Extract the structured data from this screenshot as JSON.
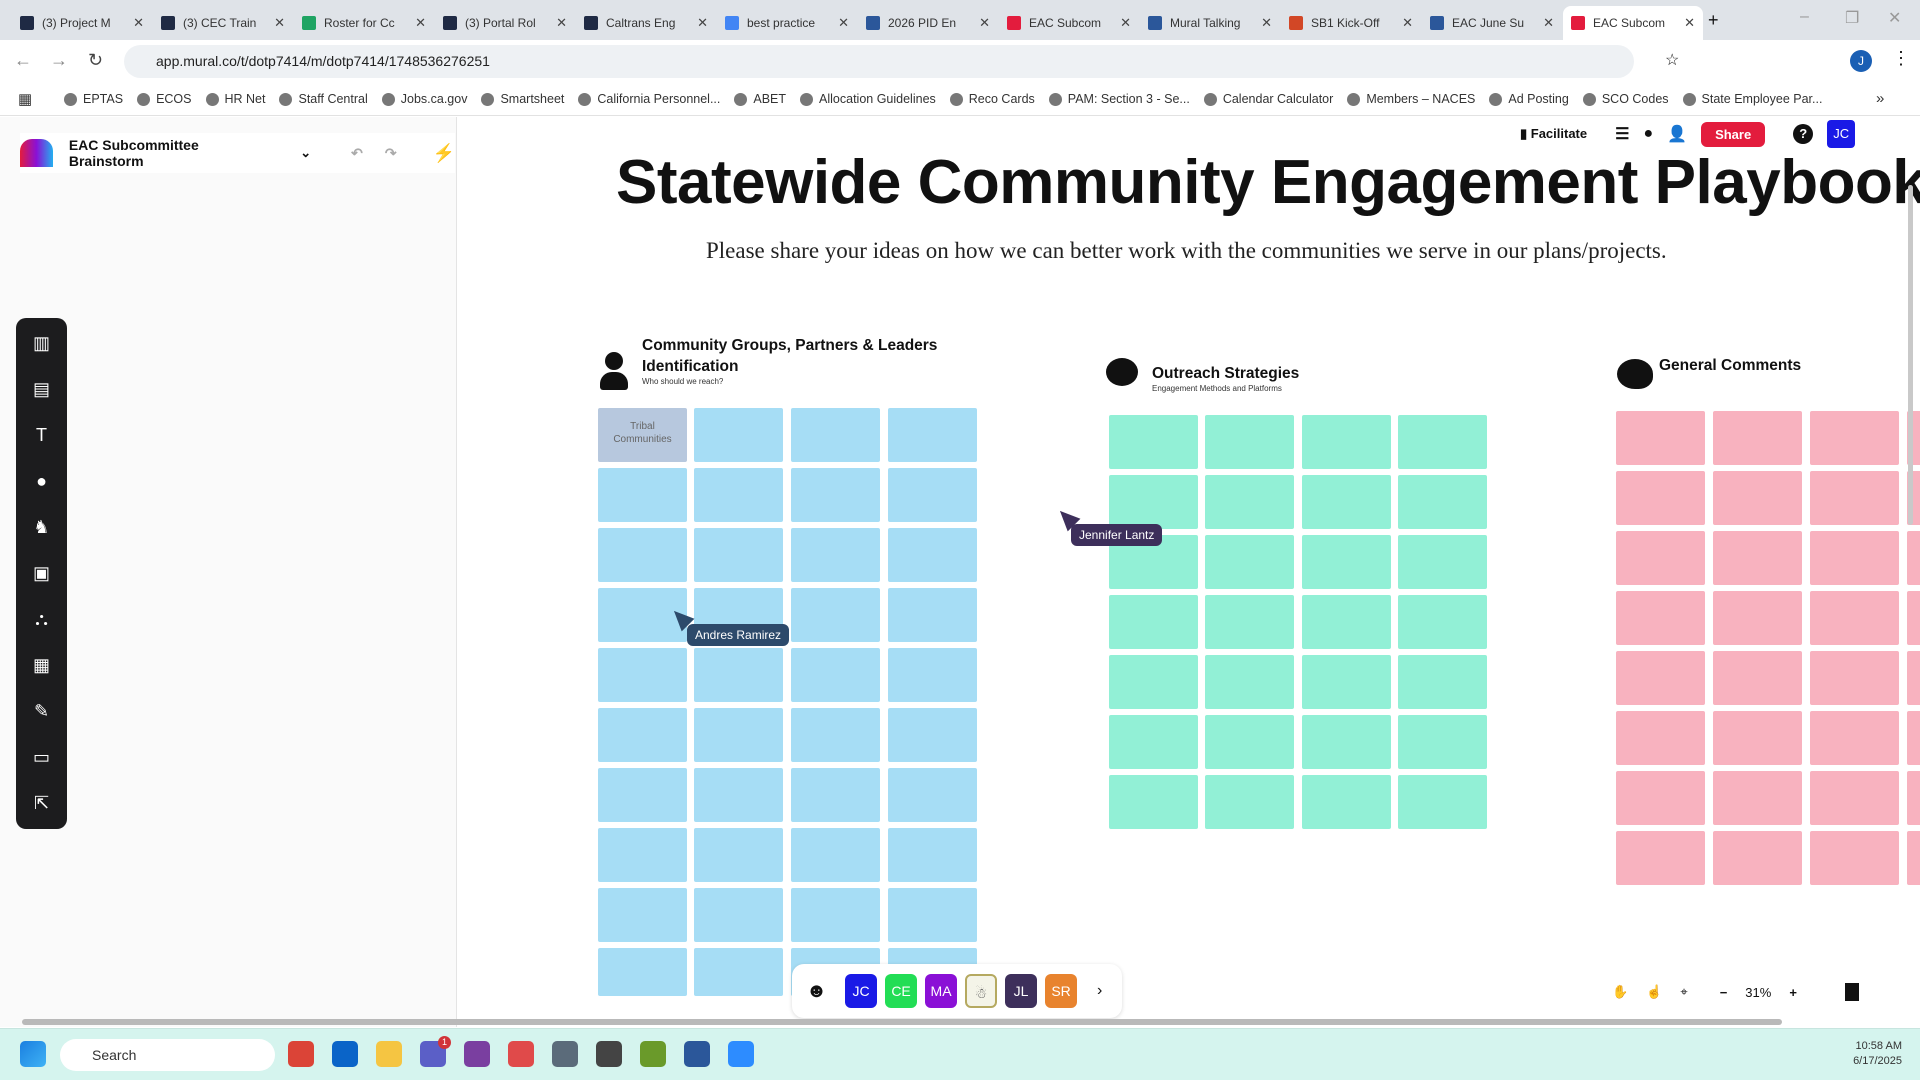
{
  "browser": {
    "tabs": [
      {
        "title": "(3) Project M",
        "icon_color": "#1f2a44"
      },
      {
        "title": "(3) CEC Train",
        "icon_color": "#1f2a44"
      },
      {
        "title": "Roster for Cc",
        "icon_color": "#1fa463"
      },
      {
        "title": "(3) Portal Rol",
        "icon_color": "#1f2a44"
      },
      {
        "title": "Caltrans Eng",
        "icon_color": "#1f2a44"
      },
      {
        "title": "best practice",
        "icon_color": "#4285f4"
      },
      {
        "title": "2026 PID En",
        "icon_color": "#2b579a"
      },
      {
        "title": "EAC Subcom",
        "icon_color": "#e31c3d"
      },
      {
        "title": "Mural Talking",
        "icon_color": "#2b579a"
      },
      {
        "title": "SB1 Kick-Off",
        "icon_color": "#d24726"
      },
      {
        "title": "EAC June Su",
        "icon_color": "#2b579a"
      },
      {
        "title": "EAC Subcom",
        "icon_color": "#e31c3d",
        "active": true
      }
    ],
    "url": "app.mural.co/t/dotp7414/m/dotp7414/1748536276251",
    "bookmarks": [
      "EPTAS",
      "ECOS",
      "HR Net",
      "Staff Central",
      "Jobs.ca.gov",
      "Smartsheet",
      "California Personnel...",
      "ABET",
      "Allocation Guidelines",
      "Reco Cards",
      "PAM: Section 3 - Se...",
      "Calendar Calculator",
      "Members – NACES",
      "Ad Posting",
      "SCO Codes",
      "State Employee Par..."
    ],
    "user_initial": "J"
  },
  "mural": {
    "board_name": "EAC Subcommittee Brainstorm",
    "facilitate": "Facilitate",
    "share": "Share",
    "user_avatar": "JC",
    "title": "Statewide Community Engagement Playbook",
    "subtitle": "Please share your ideas on how we can better work with the communities we serve in our plans/projects.",
    "sections": [
      {
        "title": "Community Groups, Partners & Leaders Identification",
        "subtitle": "Who should we reach?",
        "color": "#a6ddf5",
        "icon": "person-icon",
        "stickies": [
          "Tribal Communities"
        ]
      },
      {
        "title": "Outreach Strategies",
        "subtitle": "Engagement Methods and Platforms",
        "color": "#92f0d6",
        "icon": "thought-cloud-icon"
      },
      {
        "title": "General Comments",
        "subtitle": "",
        "color": "#f8b2bf",
        "icon": "speech-cloud-icon"
      }
    ],
    "cursors": [
      {
        "name": "Jennifer Lantz",
        "color": "#3d2f5b"
      },
      {
        "name": "Andres Ramirez",
        "color": "#2d4a6b"
      }
    ],
    "collaborators": [
      {
        "initials": "JC",
        "color": "#1a1ae6"
      },
      {
        "initials": "CE",
        "color": "#22dd55"
      },
      {
        "initials": "MA",
        "color": "#8a10d6"
      },
      {
        "initials": "",
        "color": "#f4f4e8"
      },
      {
        "initials": "JL",
        "color": "#3d2f5b"
      },
      {
        "initials": "SR",
        "color": "#e8832e"
      }
    ],
    "zoom": "31%"
  },
  "taskbar": {
    "search": "Search",
    "time": "10:58 AM",
    "date": "6/17/2025",
    "teams_badge": "1"
  }
}
